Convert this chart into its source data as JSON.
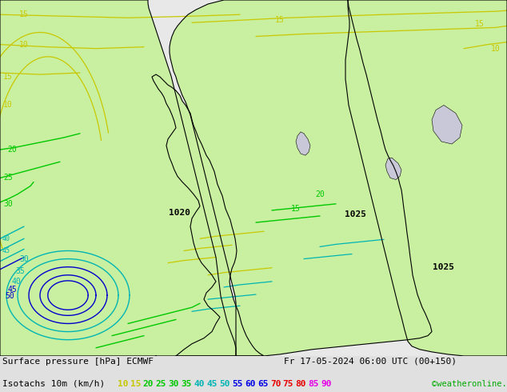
{
  "title_line1": "Surface pressure [hPa] ECMWF",
  "title_line2": "Isotachs 10m (km/h)",
  "date_str": "Fr 17-05-2024 06:00 UTC (00+150)",
  "credit": "©weatheronline.co.uk",
  "isotach_values": [
    10,
    15,
    20,
    25,
    30,
    35,
    40,
    45,
    50,
    55,
    60,
    65,
    70,
    75,
    80,
    85,
    90
  ],
  "isotach_colors": [
    "#c8c800",
    "#c8c800",
    "#00c800",
    "#00c800",
    "#00c800",
    "#00c800",
    "#00b4b4",
    "#00b4b4",
    "#00b4b4",
    "#0000e6",
    "#0000e6",
    "#0000e6",
    "#e60000",
    "#e60000",
    "#e60000",
    "#e600e6",
    "#e600e6"
  ],
  "bg_color": "#e0e0e0",
  "land_color": "#c8f0a0",
  "sea_color": "#e8e8e8",
  "lake_color": "#c8c8d8",
  "bottom_bar_color": "#c8c8c8",
  "fig_width": 6.34,
  "fig_height": 4.9,
  "dpi": 100
}
